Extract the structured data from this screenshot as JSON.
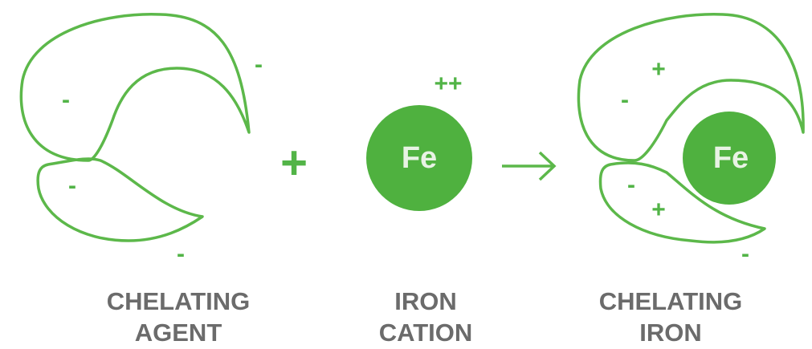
{
  "agent": {
    "charges": [
      "-",
      "-",
      "-",
      "-"
    ],
    "label_lines": [
      "CHELATING",
      "AGENT"
    ]
  },
  "operator": "+",
  "cation": {
    "symbol": "Fe",
    "charge": "++",
    "label_lines": [
      "IRON",
      "CATION"
    ]
  },
  "chelated": {
    "symbol": "Fe",
    "charges": [
      "+",
      "-",
      "-",
      "+",
      "-"
    ],
    "label_lines": [
      "CHELATING",
      "IRON"
    ]
  }
}
